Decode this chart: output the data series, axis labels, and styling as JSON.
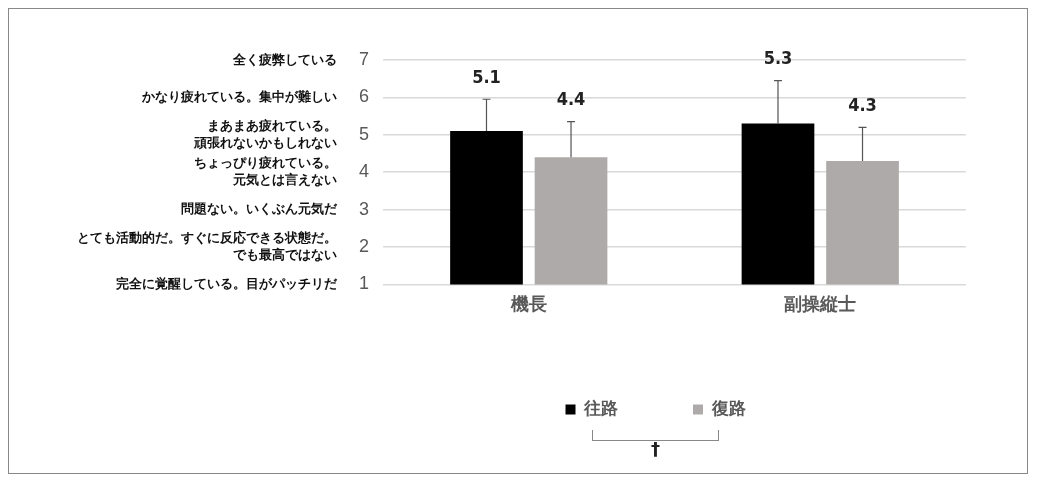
{
  "chart_data": {
    "type": "bar",
    "categories": [
      "機長",
      "副操縦士"
    ],
    "series": [
      {
        "name": "往路",
        "color": "#000000",
        "values": [
          5.1,
          5.3
        ],
        "errors": [
          [
            5.1,
            5.95
          ],
          [
            5.3,
            6.45
          ]
        ]
      },
      {
        "name": "復路",
        "color": "#aeaaaa",
        "values": [
          4.4,
          4.3
        ],
        "errors": [
          [
            4.4,
            5.35
          ],
          [
            4.3,
            5.2
          ]
        ]
      }
    ],
    "ylim": [
      1,
      7
    ],
    "yticks": [
      1,
      2,
      3,
      4,
      5,
      6,
      7
    ],
    "grid": "y",
    "legend": "bottom",
    "data_labels": true,
    "annotations": [
      "全く疲弊している",
      "かなり疲れている。集中が難しい",
      "まあまあ疲れている。頑張れないかもしれない",
      "ちょっぴり疲れている。元気とは言えない",
      "問題ない。いくぶん元気だ",
      "とても活動的だ。すぐに反応できる状態だ。でも最高ではない",
      "完全に覚醒している。目がパッチリだ",
      "†"
    ]
  }
}
